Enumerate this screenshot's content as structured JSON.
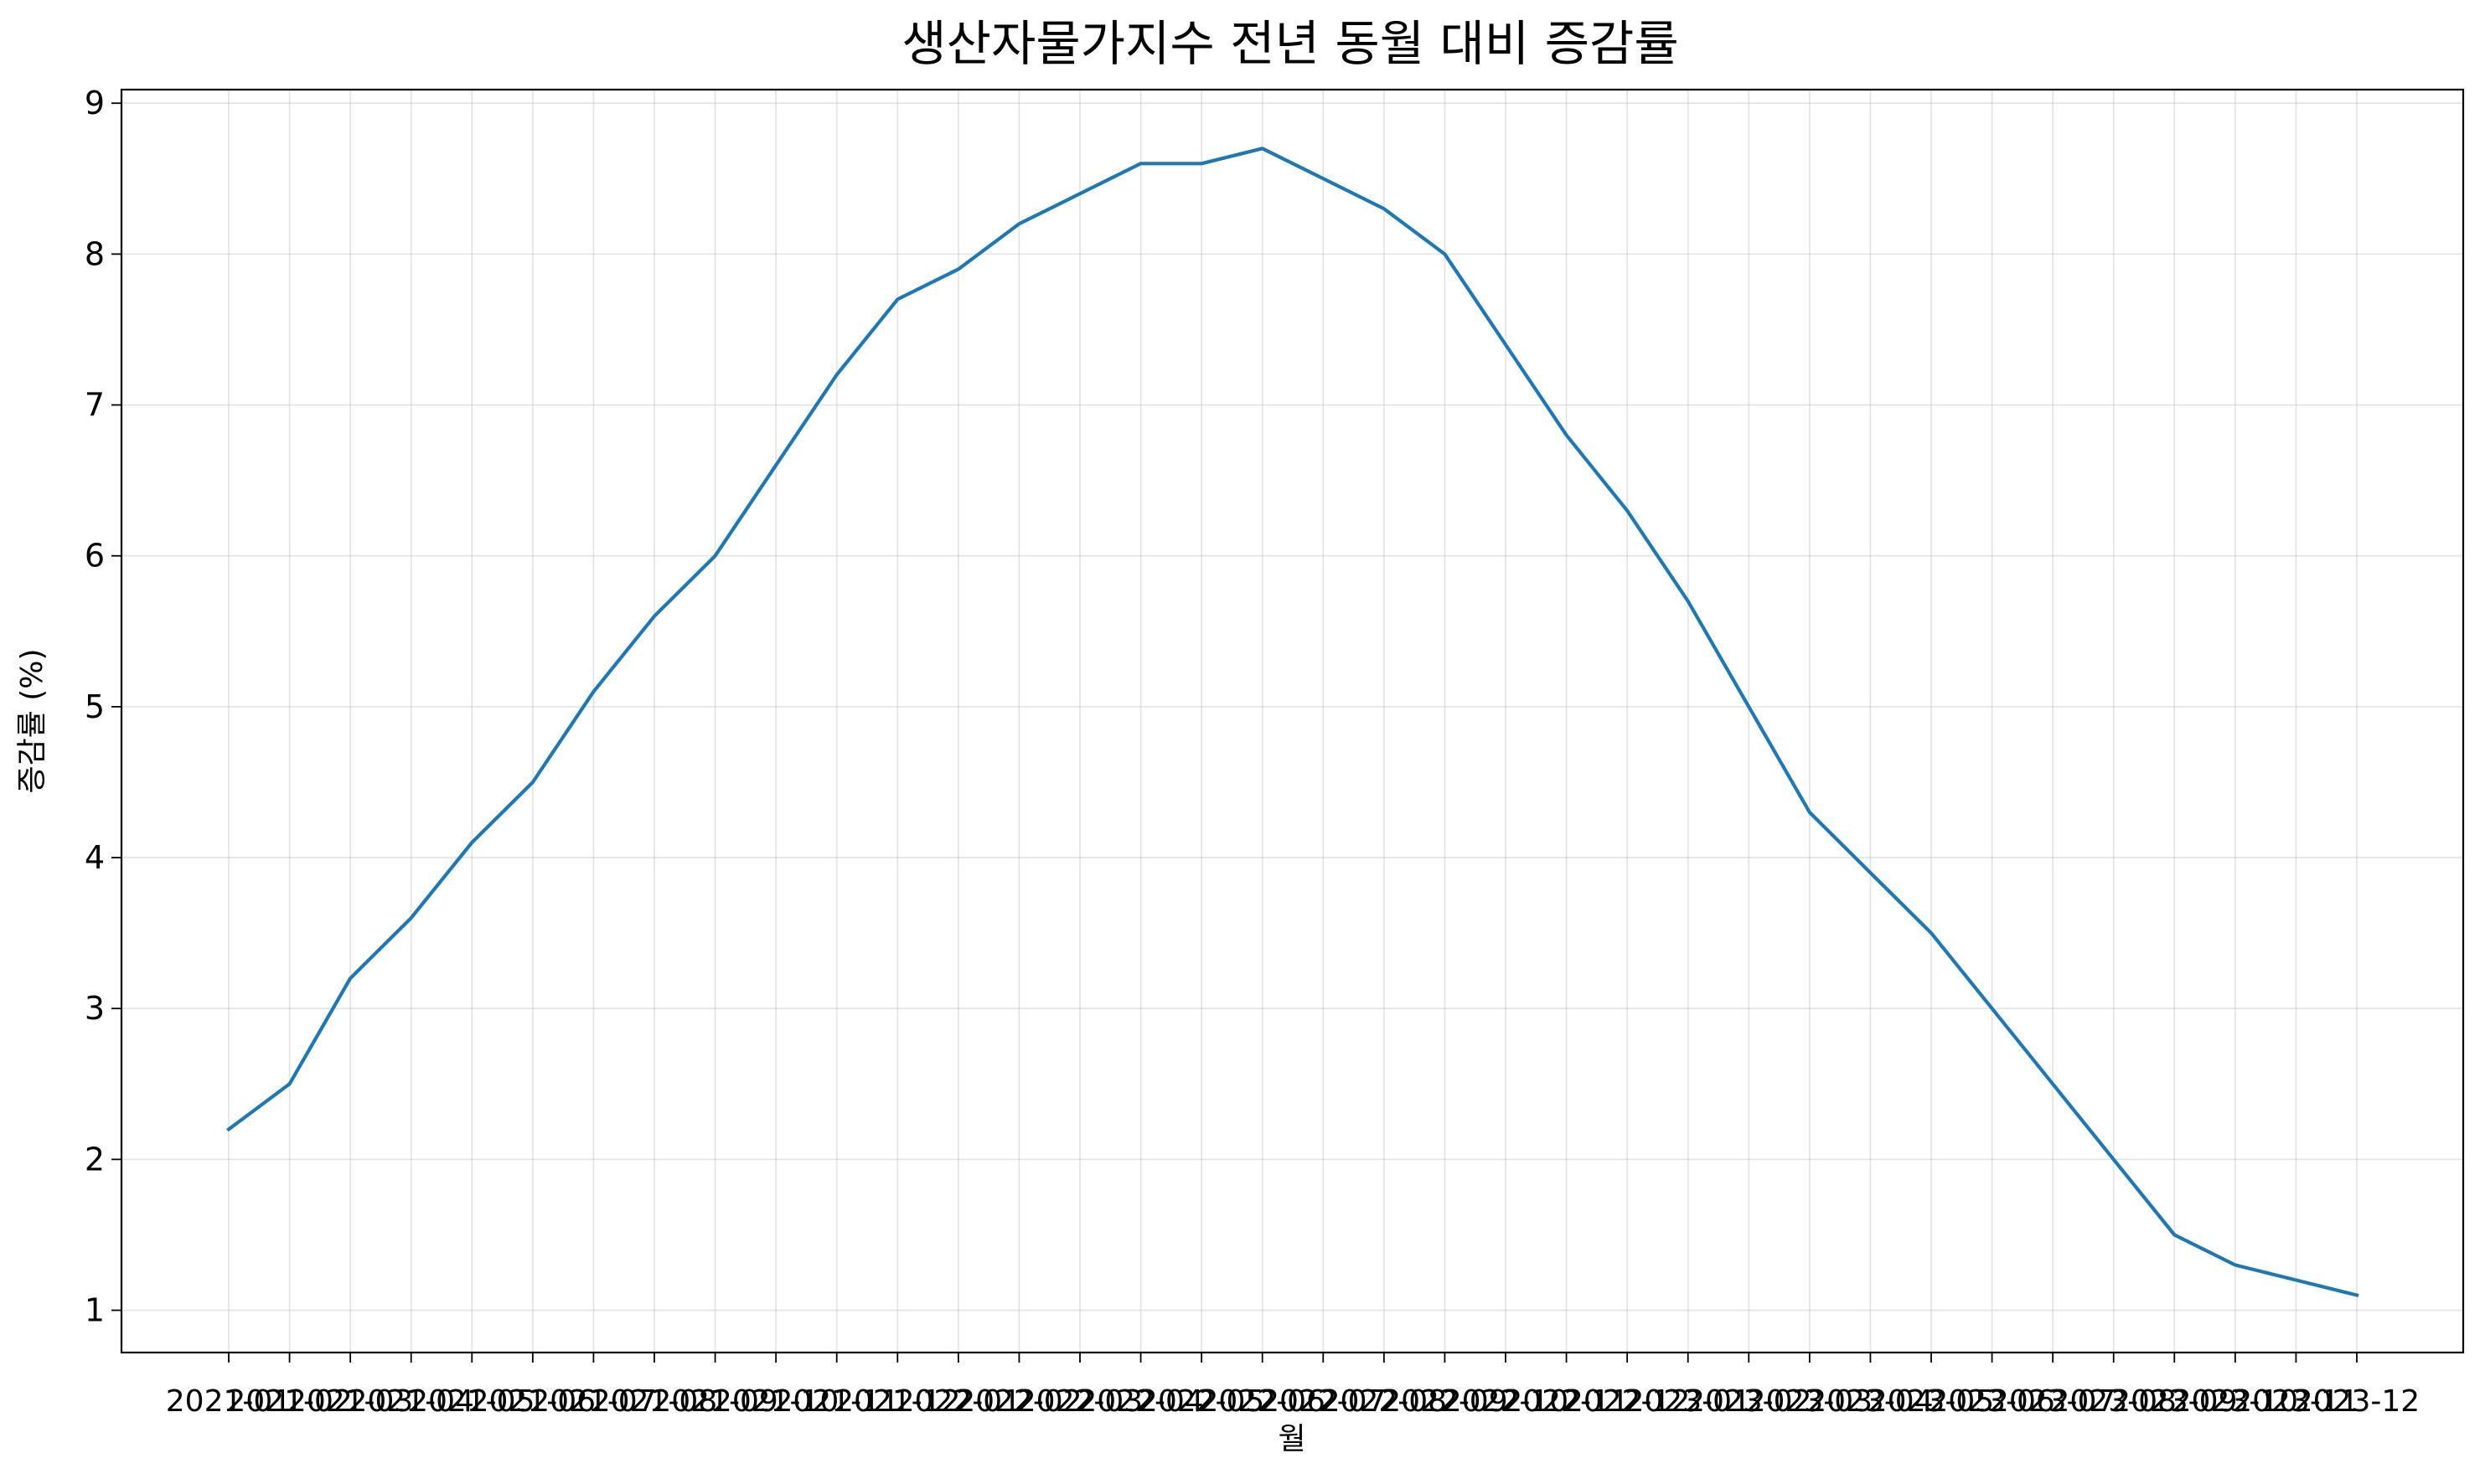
{
  "chart_data": {
    "type": "line",
    "title": "생산자물가지수 전년 동월 대비 증감률",
    "xlabel": "월",
    "ylabel": "증감률 (%)",
    "x": [
      "2021-01",
      "2021-02",
      "2021-03",
      "2021-04",
      "2021-05",
      "2021-06",
      "2021-07",
      "2021-08",
      "2021-09",
      "2021-10",
      "2021-11",
      "2021-12",
      "2022-01",
      "2022-02",
      "2022-03",
      "2022-04",
      "2022-05",
      "2022-06",
      "2022-07",
      "2022-08",
      "2022-09",
      "2022-10",
      "2022-11",
      "2022-12",
      "2023-01",
      "2023-02",
      "2023-03",
      "2023-04",
      "2023-05",
      "2023-06",
      "2023-07",
      "2023-08",
      "2023-09",
      "2023-10",
      "2023-11",
      "2023-12"
    ],
    "series": [
      {
        "name": "",
        "values": [
          2.2,
          2.5,
          3.2,
          3.6,
          4.1,
          4.5,
          5.1,
          5.6,
          6.0,
          6.6,
          7.2,
          7.7,
          7.9,
          8.2,
          8.4,
          8.6,
          8.6,
          8.7,
          8.5,
          8.3,
          8.0,
          7.4,
          6.8,
          6.3,
          5.7,
          5.0,
          4.3,
          3.9,
          3.5,
          3.0,
          2.5,
          2.0,
          1.5,
          1.3,
          1.2,
          1.1
        ],
        "color": "#1f77b4"
      }
    ],
    "ylim": [
      0.72,
      9.09
    ],
    "yticks": [
      1,
      2,
      3,
      4,
      5,
      6,
      7,
      8,
      9
    ],
    "grid": true,
    "legend": "none"
  }
}
